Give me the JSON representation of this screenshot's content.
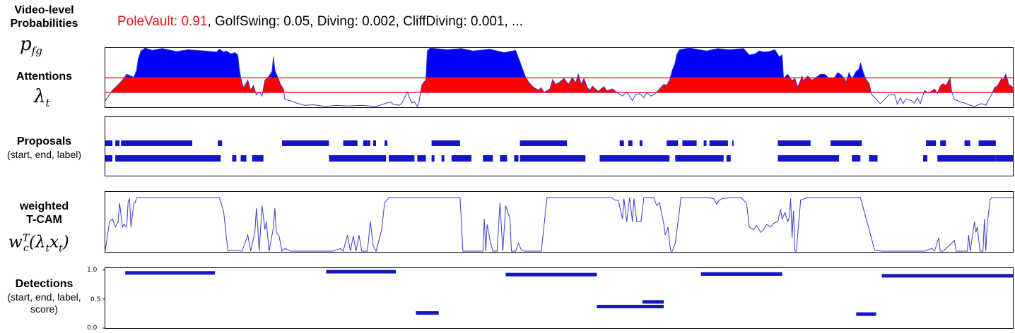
{
  "labels": {
    "video_prob_1": "Video-level",
    "video_prob_2": "Probabilities",
    "attentions": "Attentions",
    "proposals": "Proposals",
    "proposals_sub": "(start, end, label)",
    "wtcam_1": "weighted",
    "wtcam_2": "T-CAM",
    "detections": "Detections",
    "detections_sub_1": "(start, end, label,",
    "detections_sub_2": "score)"
  },
  "top_line": {
    "highlight": "PoleVault: 0.91",
    "rest": ", GolfSwing: 0.05, Diving: 0.002, CliffDiving: 0.001, ..."
  },
  "colors": {
    "blue": "#0000ff",
    "red": "#ff0000",
    "line": "#3a3acd",
    "bar": "#1414c8"
  },
  "proposals": {
    "row1": [
      [
        0,
        5
      ],
      [
        7,
        10
      ],
      [
        11,
        61
      ],
      [
        79,
        82
      ],
      [
        124,
        157
      ],
      [
        167,
        177
      ],
      [
        181,
        184
      ],
      [
        184,
        186
      ],
      [
        188,
        190
      ],
      [
        196,
        198
      ],
      [
        229,
        249
      ],
      [
        291,
        324
      ],
      [
        361,
        364
      ],
      [
        367,
        370
      ],
      [
        375,
        377
      ],
      [
        394,
        402
      ],
      [
        405,
        415
      ],
      [
        420,
        422
      ],
      [
        424,
        437
      ],
      [
        440,
        441
      ],
      [
        472,
        495
      ],
      [
        509,
        531
      ],
      [
        576,
        583
      ],
      [
        586,
        590
      ],
      [
        603,
        607
      ],
      [
        613,
        625
      ]
    ],
    "row2": [
      [
        -2,
        2
      ],
      [
        2,
        5
      ],
      [
        7,
        81
      ],
      [
        89,
        92
      ],
      [
        95,
        99
      ],
      [
        103,
        111
      ],
      [
        157,
        197
      ],
      [
        199,
        217
      ],
      [
        219,
        225
      ],
      [
        229,
        231
      ],
      [
        236,
        238
      ],
      [
        243,
        257
      ],
      [
        265,
        272
      ],
      [
        277,
        282
      ],
      [
        287,
        290
      ],
      [
        291,
        299
      ],
      [
        297,
        337
      ],
      [
        347,
        396
      ],
      [
        400,
        434
      ],
      [
        436,
        439
      ],
      [
        472,
        515
      ],
      [
        524,
        530
      ],
      [
        536,
        542
      ],
      [
        574,
        577
      ],
      [
        584,
        625
      ],
      [
        625,
        637
      ]
    ]
  },
  "chart_data": {
    "type": "line",
    "x_range": [
      0,
      637
    ],
    "attention_threshold_lines": [
      0.49,
      0.24
    ],
    "attention_series": [
      [
        0,
        0.1
      ],
      [
        5,
        0.28
      ],
      [
        8,
        0.35
      ],
      [
        12,
        0.45
      ],
      [
        15,
        0.55
      ],
      [
        20,
        0.5
      ],
      [
        22,
        0.62
      ],
      [
        23,
        0.8
      ],
      [
        24,
        0.88
      ],
      [
        25,
        0.95
      ],
      [
        28,
        1.0
      ],
      [
        33,
        0.96
      ],
      [
        40,
        0.99
      ],
      [
        50,
        0.94
      ],
      [
        58,
        0.97
      ],
      [
        70,
        0.95
      ],
      [
        78,
        0.93
      ],
      [
        80,
        0.98
      ],
      [
        83,
        0.93
      ],
      [
        85,
        0.95
      ],
      [
        88,
        0.9
      ],
      [
        91,
        0.92
      ],
      [
        93,
        0.88
      ],
      [
        94,
        0.65
      ],
      [
        95,
        0.5
      ],
      [
        97,
        0.32
      ],
      [
        100,
        0.45
      ],
      [
        102,
        0.28
      ],
      [
        104,
        0.36
      ],
      [
        106,
        0.2
      ],
      [
        108,
        0.25
      ],
      [
        110,
        0.18
      ],
      [
        112,
        0.45
      ],
      [
        115,
        0.52
      ],
      [
        117,
        0.6
      ],
      [
        118,
        0.85
      ],
      [
        119,
        0.62
      ],
      [
        121,
        0.5
      ],
      [
        123,
        0.38
      ],
      [
        125,
        0.3
      ],
      [
        126,
        0.12
      ],
      [
        130,
        0.1
      ],
      [
        134,
        0.06
      ],
      [
        140,
        0.02
      ],
      [
        146,
        0.03
      ],
      [
        155,
        0.0
      ],
      [
        162,
        0.02
      ],
      [
        170,
        0.01
      ],
      [
        180,
        0.02
      ],
      [
        190,
        0.0
      ],
      [
        200,
        0.08
      ],
      [
        202,
        0.04
      ],
      [
        206,
        0.02
      ],
      [
        208,
        0.05
      ],
      [
        212,
        0.25
      ],
      [
        215,
        0.06
      ],
      [
        217,
        0.08
      ],
      [
        219,
        0.0
      ],
      [
        220,
        0.06
      ],
      [
        222,
        0.35
      ],
      [
        223,
        0.4
      ],
      [
        225,
        0.45
      ],
      [
        226,
        0.95
      ],
      [
        228,
        1.0
      ],
      [
        240,
        0.97
      ],
      [
        250,
        0.99
      ],
      [
        258,
        0.95
      ],
      [
        270,
        0.98
      ],
      [
        280,
        0.92
      ],
      [
        288,
        0.96
      ],
      [
        292,
        0.7
      ],
      [
        295,
        0.5
      ],
      [
        297,
        0.42
      ],
      [
        300,
        0.34
      ],
      [
        304,
        0.28
      ],
      [
        306,
        0.32
      ],
      [
        308,
        0.24
      ],
      [
        312,
        0.3
      ],
      [
        314,
        0.46
      ],
      [
        316,
        0.38
      ],
      [
        318,
        0.4
      ],
      [
        322,
        0.48
      ],
      [
        325,
        0.38
      ],
      [
        328,
        0.5
      ],
      [
        330,
        0.4
      ],
      [
        332,
        0.55
      ],
      [
        334,
        0.38
      ],
      [
        336,
        0.48
      ],
      [
        338,
        0.34
      ],
      [
        340,
        0.28
      ],
      [
        342,
        0.35
      ],
      [
        344,
        0.3
      ],
      [
        346,
        0.26
      ],
      [
        350,
        0.34
      ],
      [
        352,
        0.27
      ],
      [
        356,
        0.3
      ],
      [
        360,
        0.22
      ],
      [
        363,
        0.18
      ],
      [
        366,
        0.25
      ],
      [
        370,
        0.1
      ],
      [
        372,
        0.2
      ],
      [
        375,
        0.22
      ],
      [
        378,
        0.15
      ],
      [
        380,
        0.24
      ],
      [
        383,
        0.18
      ],
      [
        386,
        0.22
      ],
      [
        389,
        0.3
      ],
      [
        392,
        0.38
      ],
      [
        394,
        0.36
      ],
      [
        396,
        0.45
      ],
      [
        398,
        0.62
      ],
      [
        400,
        0.75
      ],
      [
        401,
        0.88
      ],
      [
        403,
        0.97
      ],
      [
        410,
        1.0
      ],
      [
        422,
        0.95
      ],
      [
        430,
        0.99
      ],
      [
        438,
        0.97
      ],
      [
        448,
        0.99
      ],
      [
        452,
        0.88
      ],
      [
        456,
        0.9
      ],
      [
        459,
        0.95
      ],
      [
        462,
        0.93
      ],
      [
        466,
        0.94
      ],
      [
        470,
        0.97
      ],
      [
        473,
        0.85
      ],
      [
        475,
        0.88
      ],
      [
        476,
        0.48
      ],
      [
        479,
        0.55
      ],
      [
        482,
        0.44
      ],
      [
        484,
        0.48
      ],
      [
        486,
        0.33
      ],
      [
        488,
        0.45
      ],
      [
        489,
        0.52
      ],
      [
        490,
        0.44
      ],
      [
        493,
        0.52
      ],
      [
        496,
        0.45
      ],
      [
        499,
        0.5
      ],
      [
        502,
        0.55
      ],
      [
        505,
        0.55
      ],
      [
        508,
        0.48
      ],
      [
        512,
        0.5
      ],
      [
        514,
        0.58
      ],
      [
        516,
        0.55
      ],
      [
        518,
        0.5
      ],
      [
        520,
        0.42
      ],
      [
        522,
        0.58
      ],
      [
        524,
        0.47
      ],
      [
        527,
        0.6
      ],
      [
        529,
        0.64
      ],
      [
        530,
        0.75
      ],
      [
        532,
        0.58
      ],
      [
        534,
        0.46
      ],
      [
        536,
        0.4
      ],
      [
        538,
        0.2
      ],
      [
        540,
        0.15
      ],
      [
        542,
        0.1
      ],
      [
        544,
        0.05
      ],
      [
        546,
        0.1
      ],
      [
        550,
        0.2
      ],
      [
        554,
        0.2
      ],
      [
        556,
        0.04
      ],
      [
        558,
        0.15
      ],
      [
        560,
        0.05
      ],
      [
        562,
        0.13
      ],
      [
        566,
        0.1
      ],
      [
        568,
        0.06
      ],
      [
        570,
        0.15
      ],
      [
        572,
        0.05
      ],
      [
        575,
        0.27
      ],
      [
        578,
        0.23
      ],
      [
        582,
        0.3
      ],
      [
        584,
        0.22
      ],
      [
        586,
        0.35
      ],
      [
        588,
        0.39
      ],
      [
        590,
        0.36
      ],
      [
        593,
        0.49
      ],
      [
        594,
        0.25
      ],
      [
        596,
        0.12
      ],
      [
        600,
        0.08
      ],
      [
        603,
        0.06
      ],
      [
        606,
        0.03
      ],
      [
        610,
        0.0
      ],
      [
        615,
        0.05
      ],
      [
        618,
        0.02
      ],
      [
        620,
        0.12
      ],
      [
        622,
        0.2
      ],
      [
        624,
        0.32
      ],
      [
        626,
        0.35
      ],
      [
        628,
        0.43
      ],
      [
        629,
        0.48
      ],
      [
        630,
        0.45
      ],
      [
        632,
        0.55
      ],
      [
        633,
        0.48
      ],
      [
        634,
        0.38
      ],
      [
        636,
        0.35
      ],
      [
        637,
        0.32
      ]
    ],
    "wtcam_series": [
      [
        0,
        0.02
      ],
      [
        3,
        0.55
      ],
      [
        5,
        0.6
      ],
      [
        7,
        0.45
      ],
      [
        9,
        0.55
      ],
      [
        10,
        0.9
      ],
      [
        11,
        0.68
      ],
      [
        12,
        0.45
      ],
      [
        13,
        0.5
      ],
      [
        15,
        0.45
      ],
      [
        16,
        0.92
      ],
      [
        17,
        0.98
      ],
      [
        18,
        0.45
      ],
      [
        20,
        0.9
      ],
      [
        21,
        0.9
      ],
      [
        22,
        1.0
      ],
      [
        40,
        1.0
      ],
      [
        60,
        1.0
      ],
      [
        80,
        1.0
      ],
      [
        83,
        0.75
      ],
      [
        86,
        0.0
      ],
      [
        90,
        0.02
      ],
      [
        96,
        0.0
      ],
      [
        100,
        0.3
      ],
      [
        102,
        0.0
      ],
      [
        105,
        0.35
      ],
      [
        106,
        0.8
      ],
      [
        107,
        0.45
      ],
      [
        108,
        0.0
      ],
      [
        110,
        0.85
      ],
      [
        112,
        0.4
      ],
      [
        113,
        0.55
      ],
      [
        115,
        0.0
      ],
      [
        118,
        0.45
      ],
      [
        119,
        0.8
      ],
      [
        120,
        0.35
      ],
      [
        122,
        0.28
      ],
      [
        124,
        0.0
      ],
      [
        126,
        0.05
      ],
      [
        130,
        0.0
      ],
      [
        140,
        0.0
      ],
      [
        150,
        0.0
      ],
      [
        160,
        0.0
      ],
      [
        165,
        0.05
      ],
      [
        167,
        0.0
      ],
      [
        170,
        0.3
      ],
      [
        172,
        0.0
      ],
      [
        174,
        0.28
      ],
      [
        176,
        0.0
      ],
      [
        178,
        0.3
      ],
      [
        180,
        0.0
      ],
      [
        184,
        0.0
      ],
      [
        186,
        0.55
      ],
      [
        188,
        0.1
      ],
      [
        190,
        0.0
      ],
      [
        194,
        0.4
      ],
      [
        196,
        0.9
      ],
      [
        199,
        1.0
      ],
      [
        220,
        1.0
      ],
      [
        235,
        1.0
      ],
      [
        240,
        1.0
      ],
      [
        249,
        1.0
      ],
      [
        251,
        0.0
      ],
      [
        255,
        0.0
      ],
      [
        260,
        0.0
      ],
      [
        265,
        0.0
      ],
      [
        266,
        0.6
      ],
      [
        267,
        0.0
      ],
      [
        268,
        0.5
      ],
      [
        270,
        0.2
      ],
      [
        272,
        0.0
      ],
      [
        275,
        0.0
      ],
      [
        277,
        0.9
      ],
      [
        279,
        0.0
      ],
      [
        281,
        0.85
      ],
      [
        284,
        0.6
      ],
      [
        285,
        0.0
      ],
      [
        288,
        0.0
      ],
      [
        290,
        0.15
      ],
      [
        292,
        0.02
      ],
      [
        294,
        0.0
      ],
      [
        300,
        0.0
      ],
      [
        306,
        0.0
      ],
      [
        310,
        1.0
      ],
      [
        320,
        1.0
      ],
      [
        330,
        1.0
      ],
      [
        345,
        1.0
      ],
      [
        355,
        1.0
      ],
      [
        358,
        0.95
      ],
      [
        360,
        0.95
      ],
      [
        363,
        0.6
      ],
      [
        364,
        0.98
      ],
      [
        366,
        0.55
      ],
      [
        368,
        1.0
      ],
      [
        370,
        0.55
      ],
      [
        371,
        0.98
      ],
      [
        373,
        0.55
      ],
      [
        376,
        0.55
      ],
      [
        378,
        1.0
      ],
      [
        385,
        1.0
      ],
      [
        387,
        0.85
      ],
      [
        389,
        0.9
      ],
      [
        392,
        0.5
      ],
      [
        393,
        0.3
      ],
      [
        395,
        0.45
      ],
      [
        396,
        0.15
      ],
      [
        397,
        0.0
      ],
      [
        398,
        0.0
      ],
      [
        400,
        0.15
      ],
      [
        403,
        0.75
      ],
      [
        404,
        1.0
      ],
      [
        410,
        1.0
      ],
      [
        422,
        1.0
      ],
      [
        427,
        0.98
      ],
      [
        429,
        0.88
      ],
      [
        431,
        0.95
      ],
      [
        433,
        0.98
      ],
      [
        440,
        1.0
      ],
      [
        446,
        1.0
      ],
      [
        450,
        0.9
      ],
      [
        452,
        0.45
      ],
      [
        455,
        0.4
      ],
      [
        457,
        0.48
      ],
      [
        460,
        0.35
      ],
      [
        462,
        0.4
      ],
      [
        464,
        0.5
      ],
      [
        467,
        0.45
      ],
      [
        469,
        0.52
      ],
      [
        472,
        0.55
      ],
      [
        474,
        0.78
      ],
      [
        475,
        0.6
      ],
      [
        477,
        0.72
      ],
      [
        479,
        0.55
      ],
      [
        480,
        0.62
      ],
      [
        481,
        0.98
      ],
      [
        482,
        0.25
      ],
      [
        483,
        0.75
      ],
      [
        484,
        0.0
      ],
      [
        485,
        0.0
      ],
      [
        488,
        0.95
      ],
      [
        493,
        1.0
      ],
      [
        500,
        1.0
      ],
      [
        510,
        1.0
      ],
      [
        530,
        1.0
      ],
      [
        540,
        0.02
      ],
      [
        545,
        0.0
      ],
      [
        555,
        0.0
      ],
      [
        565,
        0.0
      ],
      [
        575,
        0.0
      ],
      [
        580,
        0.05
      ],
      [
        582,
        0.0
      ],
      [
        585,
        0.25
      ],
      [
        586,
        0.0
      ],
      [
        588,
        0.0
      ],
      [
        592,
        0.1
      ],
      [
        596,
        0.2
      ],
      [
        597,
        0.0
      ],
      [
        600,
        0.0
      ],
      [
        605,
        0.0
      ],
      [
        606,
        0.3
      ],
      [
        607,
        0.0
      ],
      [
        609,
        0.35
      ],
      [
        610,
        0.55
      ],
      [
        611,
        0.35
      ],
      [
        612,
        0.45
      ],
      [
        614,
        0.0
      ],
      [
        616,
        0.0
      ],
      [
        617,
        0.6
      ],
      [
        618,
        0.0
      ],
      [
        619,
        0.5
      ],
      [
        621,
        0.95
      ],
      [
        622,
        1.0
      ],
      [
        630,
        1.0
      ],
      [
        637,
        1.0
      ]
    ],
    "detections": {
      "y_ticks": [
        "1.0",
        "0.5",
        "0.0"
      ],
      "y_tick_values": [
        1.0,
        0.5,
        0.0
      ],
      "ylim": [
        0,
        1.02
      ],
      "segments": [
        [
          14,
          77,
          0.95
        ],
        [
          155,
          204,
          0.97
        ],
        [
          218,
          234,
          0.26
        ],
        [
          281,
          345,
          0.92
        ],
        [
          345,
          392,
          0.37
        ],
        [
          377,
          392,
          0.45
        ],
        [
          418,
          475,
          0.93
        ],
        [
          527,
          541,
          0.24
        ],
        [
          545,
          637,
          0.9
        ]
      ]
    }
  }
}
